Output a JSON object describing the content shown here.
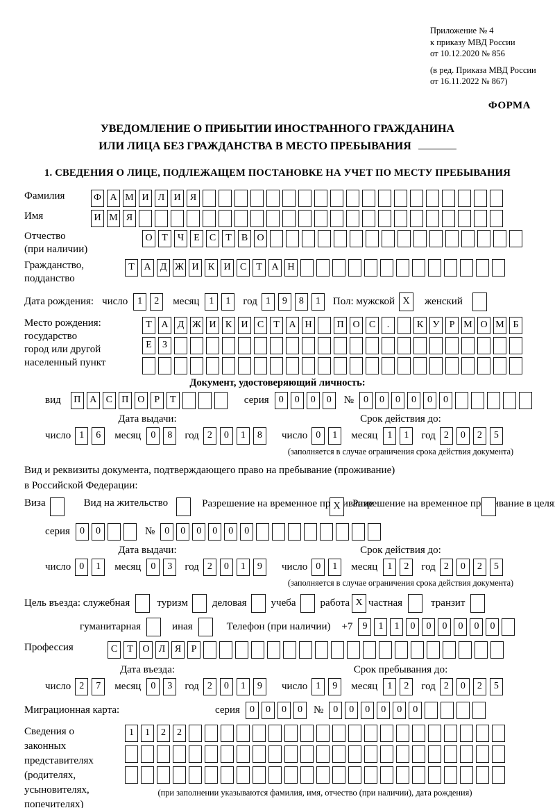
{
  "colors": {
    "paper": "#ffffff",
    "ink": "#000000",
    "box_border": "#1a1a1a"
  },
  "header": {
    "annex_lines": [
      "Приложение № 4",
      "к приказу МВД России",
      "от 10.12.2020 № 856"
    ],
    "revision_lines": [
      "(в ред. Приказа МВД России",
      "от 16.11.2022 № 867)"
    ],
    "forma": "ФОРМА"
  },
  "title": {
    "line1": "УВЕДОМЛЕНИЕ О ПРИБЫТИИ ИНОСТРАННОГО ГРАЖДАНИНА",
    "line2": "ИЛИ ЛИЦА БЕЗ ГРАЖДАНСТВА В МЕСТО ПРЕБЫВАНИЯ"
  },
  "section1": {
    "heading": "1. СВЕДЕНИЯ О ЛИЦЕ, ПОДЛЕЖАЩЕМ ПОСТАНОВКЕ НА УЧЕТ ПО МЕСТУ ПРЕБЫВАНИЯ"
  },
  "labels": {
    "surname": "Фамилия",
    "name": "Имя",
    "patronymic1": "Отчество",
    "patronymic2": "(при наличии)",
    "citizenship1": "Гражданство,",
    "citizenship2": "подданство",
    "birthdate": "Дата рождения:",
    "day": "число",
    "month": "месяц",
    "year": "год",
    "sex_male": "Пол: мужской",
    "sex_female": "женский",
    "birthplace1": "Место рождения:",
    "birthplace2": "государство",
    "birthplace3": "город или другой",
    "birthplace4": "населенный пункт",
    "id_doc_heading": "Документ, удостоверяющий личность:",
    "vid": "вид",
    "seriya": "серия",
    "number_sign": "№",
    "issue_date": "Дата выдачи:",
    "valid_until": "Срок действия до:",
    "residence_doc_line1": "Вид и реквизиты документа, подтверждающего право на пребывание (проживание)",
    "residence_doc_line2": "в Российской Федерации:",
    "visa": "Виза",
    "residence_permit": "Вид на жительство",
    "temp_residence": "Разрешение на временное проживание",
    "temp_residence_edu": "Разрешение на временное проживание в целях получения образования",
    "purpose": "Цель въезда: служебная",
    "tourism": "туризм",
    "business": "деловая",
    "study": "учеба",
    "work": "работа",
    "private": "частная",
    "transit": "транзит",
    "humanitarian": "гуманитарная",
    "other": "иная",
    "phone": "Телефон (при наличии)",
    "plus7": "+7",
    "profession": "Профессия",
    "entry_date": "Дата въезда:",
    "stay_until": "Срок пребывания до:",
    "migration_card": "Миграционная карта:",
    "rep1": "Сведения о",
    "rep2": "законных",
    "rep3": "представителях",
    "rep4": "(родителях,",
    "rep5": "усыновителях,",
    "rep6": "попечителях)"
  },
  "notes": {
    "validity": "(заполняется в случае ограничения срока действия документа)",
    "representatives": "(при заполнении указываются фамилия, имя, отчество (при наличии), дата рождения)"
  },
  "boxes": {
    "surname": {
      "total": 26,
      "chars": "ФАМИЛИЯ"
    },
    "name": {
      "total": 26,
      "chars": "ИМЯ"
    },
    "patronymic": {
      "total": 24,
      "chars": "ОТЧЕСТВО"
    },
    "citizenship": {
      "total": 24,
      "chars": "ТАДЖИКИСТАН"
    },
    "birth_day": {
      "total": 2,
      "chars": "12"
    },
    "birth_month": {
      "total": 2,
      "chars": "11"
    },
    "birth_year": {
      "total": 4,
      "chars": "1981"
    },
    "sex_male": {
      "total": 1,
      "chars": "X"
    },
    "sex_female": {
      "total": 1,
      "chars": ""
    },
    "birthplace_row1": {
      "total": 24,
      "chars": "ТАДЖИКИСТАН ПОС. КУРМОМБ"
    },
    "birthplace_row2": {
      "total": 24,
      "chars": "ЕЗ"
    },
    "birthplace_row3": {
      "total": 24,
      "chars": ""
    },
    "id_type": {
      "total": 10,
      "chars": "ПАСПОРТ"
    },
    "id_series": {
      "total": 4,
      "chars": "0000"
    },
    "id_number": {
      "total": 11,
      "chars": "000000"
    },
    "id_issue_day": {
      "total": 2,
      "chars": "16"
    },
    "id_issue_month": {
      "total": 2,
      "chars": "08"
    },
    "id_issue_year": {
      "total": 4,
      "chars": "2018"
    },
    "id_valid_day": {
      "total": 2,
      "chars": "01"
    },
    "id_valid_month": {
      "total": 2,
      "chars": "11"
    },
    "id_valid_year": {
      "total": 4,
      "chars": "2025"
    },
    "visa": {
      "total": 1,
      "chars": ""
    },
    "residence_permit": {
      "total": 1,
      "chars": ""
    },
    "temp_residence": {
      "total": 1,
      "chars": "X"
    },
    "temp_residence_edu": {
      "total": 1,
      "chars": ""
    },
    "permit_series": {
      "total": 4,
      "chars": "00"
    },
    "permit_number": {
      "total": 14,
      "chars": "000000"
    },
    "permit_issue_day": {
      "total": 2,
      "chars": "01"
    },
    "permit_issue_month": {
      "total": 2,
      "chars": "03"
    },
    "permit_issue_year": {
      "total": 4,
      "chars": "2019"
    },
    "permit_valid_day": {
      "total": 2,
      "chars": "01"
    },
    "permit_valid_month": {
      "total": 2,
      "chars": "12"
    },
    "permit_valid_year": {
      "total": 4,
      "chars": "2025"
    },
    "purpose_official": {
      "total": 1,
      "chars": ""
    },
    "purpose_tourism": {
      "total": 1,
      "chars": ""
    },
    "purpose_business": {
      "total": 1,
      "chars": ""
    },
    "purpose_study": {
      "total": 1,
      "chars": ""
    },
    "purpose_work": {
      "total": 1,
      "chars": "X"
    },
    "purpose_private": {
      "total": 1,
      "chars": ""
    },
    "purpose_transit": {
      "total": 1,
      "chars": ""
    },
    "purpose_humanitarian": {
      "total": 1,
      "chars": ""
    },
    "purpose_other": {
      "total": 1,
      "chars": ""
    },
    "phone": {
      "total": 10,
      "chars": "911000000"
    },
    "profession": {
      "total": 25,
      "chars": "СТОЛЯР"
    },
    "entry_day": {
      "total": 2,
      "chars": "27"
    },
    "entry_month": {
      "total": 2,
      "chars": "03"
    },
    "entry_year": {
      "total": 4,
      "chars": "2019"
    },
    "stay_day": {
      "total": 2,
      "chars": "19"
    },
    "stay_month": {
      "total": 2,
      "chars": "12"
    },
    "stay_year": {
      "total": 4,
      "chars": "2025"
    },
    "mig_series": {
      "total": 4,
      "chars": "0000"
    },
    "mig_number": {
      "total": 10,
      "chars": "000000"
    },
    "rep_row1": {
      "total": 24,
      "chars": "1122"
    },
    "rep_row2": {
      "total": 24,
      "chars": ""
    },
    "rep_row3": {
      "total": 24,
      "chars": ""
    }
  }
}
